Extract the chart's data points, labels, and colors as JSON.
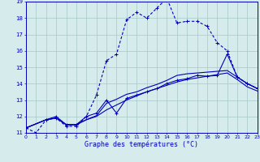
{
  "xlabel": "Graphe des températures (°C)",
  "xlim": [
    0,
    23
  ],
  "ylim": [
    11,
    19
  ],
  "xtick_labels": [
    "0",
    "1",
    "2",
    "3",
    "4",
    "5",
    "6",
    "7",
    "8",
    "9",
    "10",
    "11",
    "12",
    "13",
    "14",
    "15",
    "16",
    "17",
    "18",
    "19",
    "20",
    "21",
    "22",
    "23"
  ],
  "ytick_labels": [
    "11",
    "12",
    "13",
    "14",
    "15",
    "16",
    "17",
    "18",
    "19"
  ],
  "bg_color": "#d6ecec",
  "grid_color": "#a8c8c8",
  "line_color": "#0000bb",
  "curve_dotted_markers": {
    "x": [
      0,
      1,
      2,
      3,
      4,
      5,
      6,
      7,
      8,
      9,
      10,
      11,
      12,
      13,
      14,
      15,
      16,
      17,
      18,
      19,
      20,
      21,
      22,
      23
    ],
    "y": [
      11.3,
      11.0,
      11.8,
      11.9,
      11.4,
      11.4,
      12.0,
      13.3,
      15.4,
      15.8,
      17.9,
      18.35,
      18.0,
      18.6,
      19.2,
      17.7,
      17.8,
      17.8,
      17.5,
      16.5,
      16.0,
      14.4,
      14.0,
      13.7
    ]
  },
  "curve_solid_markers": {
    "x": [
      0,
      2,
      3,
      4,
      5,
      6,
      7,
      8,
      9,
      10,
      11,
      12,
      13,
      14,
      15,
      16,
      17,
      18,
      19,
      20,
      21,
      22,
      23
    ],
    "y": [
      11.3,
      11.8,
      12.0,
      11.5,
      11.5,
      12.0,
      12.2,
      13.0,
      12.2,
      13.1,
      13.3,
      13.5,
      13.7,
      14.0,
      14.2,
      14.3,
      14.5,
      14.45,
      14.5,
      15.8,
      14.4,
      14.0,
      13.7
    ]
  },
  "curve_solid1": {
    "x": [
      0,
      2,
      3,
      4,
      5,
      6,
      7,
      8,
      9,
      10,
      11,
      12,
      13,
      14,
      15,
      16,
      17,
      18,
      19,
      20,
      21,
      22,
      23
    ],
    "y": [
      11.3,
      11.8,
      11.9,
      11.5,
      11.5,
      11.8,
      12.0,
      12.4,
      12.7,
      13.0,
      13.25,
      13.5,
      13.7,
      13.9,
      14.1,
      14.25,
      14.35,
      14.45,
      14.55,
      14.65,
      14.25,
      13.8,
      13.55
    ]
  },
  "curve_solid2": {
    "x": [
      0,
      2,
      3,
      4,
      5,
      6,
      7,
      8,
      9,
      10,
      11,
      12,
      13,
      14,
      15,
      16,
      17,
      18,
      19,
      20,
      21,
      22,
      23
    ],
    "y": [
      11.3,
      11.8,
      11.9,
      11.5,
      11.5,
      11.8,
      12.05,
      12.8,
      13.05,
      13.35,
      13.5,
      13.75,
      13.95,
      14.2,
      14.5,
      14.6,
      14.65,
      14.7,
      14.75,
      14.8,
      14.4,
      14.0,
      13.7
    ]
  }
}
